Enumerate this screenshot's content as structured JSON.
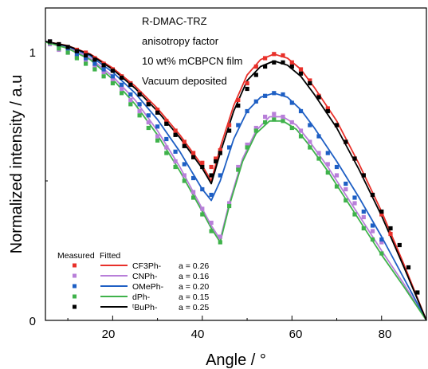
{
  "chart_data": {
    "type": "scatter",
    "xlabel": "Angle / °",
    "ylabel": "Normalized intensity / a.u",
    "xlim": [
      5,
      90
    ],
    "ylim": [
      0,
      1.12
    ],
    "x_ticks": [
      "20",
      "40",
      "60",
      "80"
    ],
    "y_ticks": [
      "0",
      "1"
    ],
    "annotations": [
      "R-DMAC-TRZ",
      "anisotropy factor",
      "10 wt% mCBPCN film",
      "Vacuum deposited"
    ],
    "legend_headers": {
      "measured": "Measured",
      "fitted": "Fitted"
    },
    "legend_position": "bottom-left",
    "series": [
      {
        "name": "CF3Ph-",
        "a_label": "a = 0.26",
        "color": "#e8302a",
        "curve": [
          [
            5,
            1.0
          ],
          [
            10,
            0.985
          ],
          [
            15,
            0.955
          ],
          [
            20,
            0.905
          ],
          [
            25,
            0.84
          ],
          [
            30,
            0.76
          ],
          [
            35,
            0.665
          ],
          [
            40,
            0.555
          ],
          [
            42,
            0.5
          ],
          [
            44,
            0.62
          ],
          [
            47,
            0.77
          ],
          [
            50,
            0.88
          ],
          [
            53,
            0.935
          ],
          [
            56,
            0.955
          ],
          [
            59,
            0.94
          ],
          [
            62,
            0.9
          ],
          [
            65,
            0.835
          ],
          [
            70,
            0.715
          ],
          [
            75,
            0.56
          ],
          [
            80,
            0.39
          ],
          [
            85,
            0.2
          ],
          [
            90,
            0.0
          ]
        ],
        "points": [
          [
            6,
            1.0
          ],
          [
            8,
            0.99
          ],
          [
            10,
            0.98
          ],
          [
            12,
            0.97
          ],
          [
            14,
            0.96
          ],
          [
            16,
            0.94
          ],
          [
            18,
            0.92
          ],
          [
            20,
            0.9
          ],
          [
            22,
            0.875
          ],
          [
            24,
            0.85
          ],
          [
            26,
            0.815
          ],
          [
            28,
            0.78
          ],
          [
            30,
            0.755
          ],
          [
            32,
            0.715
          ],
          [
            34,
            0.68
          ],
          [
            36,
            0.64
          ],
          [
            38,
            0.6
          ],
          [
            40,
            0.565
          ],
          [
            42,
            0.55
          ],
          [
            43,
            0.58
          ],
          [
            44,
            0.61
          ],
          [
            46,
            0.7
          ],
          [
            48,
            0.79
          ],
          [
            50,
            0.85
          ],
          [
            52,
            0.91
          ],
          [
            54,
            0.94
          ],
          [
            56,
            0.955
          ],
          [
            58,
            0.95
          ],
          [
            60,
            0.925
          ],
          [
            62,
            0.9
          ],
          [
            64,
            0.86
          ],
          [
            66,
            0.805
          ],
          [
            68,
            0.76
          ],
          [
            70,
            0.7
          ],
          [
            72,
            0.64
          ],
          [
            74,
            0.58
          ],
          [
            76,
            0.52
          ],
          [
            78,
            0.45
          ],
          [
            80,
            0.38
          ],
          [
            82,
            0.31
          ]
        ]
      },
      {
        "name": "CNPh-",
        "a_label": "a = 0.16",
        "color": "#b87fd9",
        "curve": [
          [
            5,
            1.0
          ],
          [
            10,
            0.98
          ],
          [
            15,
            0.94
          ],
          [
            20,
            0.875
          ],
          [
            25,
            0.79
          ],
          [
            30,
            0.68
          ],
          [
            35,
            0.55
          ],
          [
            40,
            0.4
          ],
          [
            42,
            0.34
          ],
          [
            44,
            0.29
          ],
          [
            46,
            0.42
          ],
          [
            49,
            0.58
          ],
          [
            52,
            0.68
          ],
          [
            55,
            0.73
          ],
          [
            58,
            0.73
          ],
          [
            61,
            0.7
          ],
          [
            64,
            0.64
          ],
          [
            68,
            0.55
          ],
          [
            72,
            0.45
          ],
          [
            76,
            0.35
          ],
          [
            80,
            0.25
          ],
          [
            85,
            0.13
          ],
          [
            90,
            0.0
          ]
        ],
        "points": [
          [
            6,
            0.99
          ],
          [
            8,
            0.97
          ],
          [
            10,
            0.96
          ],
          [
            12,
            0.945
          ],
          [
            14,
            0.93
          ],
          [
            16,
            0.91
          ],
          [
            18,
            0.89
          ],
          [
            20,
            0.865
          ],
          [
            22,
            0.83
          ],
          [
            24,
            0.79
          ],
          [
            26,
            0.75
          ],
          [
            28,
            0.71
          ],
          [
            30,
            0.66
          ],
          [
            32,
            0.62
          ],
          [
            34,
            0.57
          ],
          [
            36,
            0.52
          ],
          [
            38,
            0.46
          ],
          [
            40,
            0.4
          ],
          [
            42,
            0.35
          ],
          [
            44,
            0.3
          ],
          [
            46,
            0.42
          ],
          [
            48,
            0.55
          ],
          [
            50,
            0.63
          ],
          [
            52,
            0.69
          ],
          [
            54,
            0.73
          ],
          [
            56,
            0.74
          ],
          [
            58,
            0.73
          ],
          [
            60,
            0.71
          ],
          [
            62,
            0.68
          ],
          [
            64,
            0.64
          ],
          [
            66,
            0.6
          ],
          [
            68,
            0.56
          ],
          [
            70,
            0.52
          ],
          [
            72,
            0.47
          ],
          [
            74,
            0.42
          ],
          [
            76,
            0.37
          ],
          [
            78,
            0.32
          ],
          [
            80,
            0.28
          ]
        ]
      },
      {
        "name": "OMePh-",
        "a_label": "a = 0.20",
        "color": "#1e5fc4",
        "curve": [
          [
            5,
            1.0
          ],
          [
            10,
            0.982
          ],
          [
            15,
            0.948
          ],
          [
            20,
            0.89
          ],
          [
            25,
            0.815
          ],
          [
            30,
            0.72
          ],
          [
            35,
            0.605
          ],
          [
            40,
            0.47
          ],
          [
            42,
            0.43
          ],
          [
            44,
            0.5
          ],
          [
            47,
            0.65
          ],
          [
            50,
            0.75
          ],
          [
            53,
            0.8
          ],
          [
            56,
            0.815
          ],
          [
            59,
            0.8
          ],
          [
            62,
            0.755
          ],
          [
            65,
            0.69
          ],
          [
            70,
            0.57
          ],
          [
            75,
            0.44
          ],
          [
            80,
            0.3
          ],
          [
            85,
            0.15
          ],
          [
            90,
            0.0
          ]
        ],
        "points": [
          [
            6,
            1.0
          ],
          [
            8,
            0.985
          ],
          [
            10,
            0.975
          ],
          [
            12,
            0.955
          ],
          [
            14,
            0.94
          ],
          [
            16,
            0.92
          ],
          [
            18,
            0.9
          ],
          [
            20,
            0.875
          ],
          [
            22,
            0.845
          ],
          [
            24,
            0.81
          ],
          [
            26,
            0.775
          ],
          [
            28,
            0.735
          ],
          [
            30,
            0.695
          ],
          [
            32,
            0.65
          ],
          [
            34,
            0.605
          ],
          [
            36,
            0.56
          ],
          [
            38,
            0.51
          ],
          [
            40,
            0.47
          ],
          [
            42,
            0.45
          ],
          [
            44,
            0.52
          ],
          [
            46,
            0.62
          ],
          [
            48,
            0.7
          ],
          [
            50,
            0.75
          ],
          [
            52,
            0.785
          ],
          [
            54,
            0.805
          ],
          [
            56,
            0.815
          ],
          [
            58,
            0.81
          ],
          [
            60,
            0.78
          ],
          [
            62,
            0.75
          ],
          [
            64,
            0.7
          ],
          [
            66,
            0.66
          ],
          [
            68,
            0.6
          ],
          [
            70,
            0.55
          ],
          [
            72,
            0.49
          ],
          [
            74,
            0.44
          ],
          [
            76,
            0.39
          ],
          [
            78,
            0.34
          ],
          [
            80,
            0.29
          ]
        ]
      },
      {
        "name": "dPh-",
        "a_label": "a = 0.15",
        "color": "#3fb24b",
        "curve": [
          [
            5,
            0.998
          ],
          [
            10,
            0.975
          ],
          [
            15,
            0.935
          ],
          [
            20,
            0.865
          ],
          [
            25,
            0.775
          ],
          [
            30,
            0.665
          ],
          [
            35,
            0.535
          ],
          [
            40,
            0.39
          ],
          [
            42,
            0.33
          ],
          [
            44,
            0.28
          ],
          [
            46,
            0.41
          ],
          [
            49,
            0.57
          ],
          [
            52,
            0.67
          ],
          [
            55,
            0.715
          ],
          [
            58,
            0.715
          ],
          [
            61,
            0.685
          ],
          [
            64,
            0.625
          ],
          [
            68,
            0.535
          ],
          [
            72,
            0.435
          ],
          [
            76,
            0.335
          ],
          [
            80,
            0.235
          ],
          [
            85,
            0.12
          ],
          [
            90,
            0.0
          ]
        ],
        "points": [
          [
            6,
            0.995
          ],
          [
            8,
            0.975
          ],
          [
            10,
            0.96
          ],
          [
            12,
            0.94
          ],
          [
            14,
            0.92
          ],
          [
            16,
            0.9
          ],
          [
            18,
            0.875
          ],
          [
            20,
            0.85
          ],
          [
            22,
            0.815
          ],
          [
            24,
            0.775
          ],
          [
            26,
            0.735
          ],
          [
            28,
            0.69
          ],
          [
            30,
            0.645
          ],
          [
            32,
            0.6
          ],
          [
            34,
            0.55
          ],
          [
            36,
            0.5
          ],
          [
            38,
            0.44
          ],
          [
            40,
            0.38
          ],
          [
            42,
            0.32
          ],
          [
            44,
            0.28
          ],
          [
            46,
            0.41
          ],
          [
            48,
            0.54
          ],
          [
            50,
            0.62
          ],
          [
            52,
            0.68
          ],
          [
            54,
            0.71
          ],
          [
            56,
            0.72
          ],
          [
            58,
            0.715
          ],
          [
            60,
            0.69
          ],
          [
            62,
            0.66
          ],
          [
            64,
            0.62
          ],
          [
            66,
            0.58
          ],
          [
            68,
            0.53
          ],
          [
            70,
            0.48
          ],
          [
            72,
            0.43
          ],
          [
            74,
            0.38
          ],
          [
            76,
            0.33
          ],
          [
            78,
            0.29
          ],
          [
            80,
            0.24
          ]
        ]
      },
      {
        "name": "ᵗBuPh-",
        "a_label": "a = 0.25",
        "color": "#000000",
        "curve": [
          [
            5,
            1.0
          ],
          [
            10,
            0.984
          ],
          [
            15,
            0.953
          ],
          [
            20,
            0.9
          ],
          [
            25,
            0.832
          ],
          [
            30,
            0.75
          ],
          [
            35,
            0.655
          ],
          [
            40,
            0.545
          ],
          [
            42,
            0.49
          ],
          [
            44,
            0.6
          ],
          [
            47,
            0.75
          ],
          [
            50,
            0.86
          ],
          [
            53,
            0.91
          ],
          [
            56,
            0.93
          ],
          [
            59,
            0.915
          ],
          [
            62,
            0.875
          ],
          [
            65,
            0.81
          ],
          [
            70,
            0.69
          ],
          [
            75,
            0.54
          ],
          [
            80,
            0.375
          ],
          [
            85,
            0.19
          ],
          [
            90,
            0.0
          ]
        ],
        "points": [
          [
            6,
            1.0
          ],
          [
            8,
            0.99
          ],
          [
            10,
            0.98
          ],
          [
            12,
            0.965
          ],
          [
            14,
            0.95
          ],
          [
            16,
            0.935
          ],
          [
            18,
            0.915
          ],
          [
            20,
            0.895
          ],
          [
            22,
            0.87
          ],
          [
            24,
            0.845
          ],
          [
            26,
            0.81
          ],
          [
            28,
            0.775
          ],
          [
            30,
            0.745
          ],
          [
            32,
            0.705
          ],
          [
            34,
            0.665
          ],
          [
            36,
            0.625
          ],
          [
            38,
            0.585
          ],
          [
            40,
            0.55
          ],
          [
            42,
            0.52
          ],
          [
            43,
            0.57
          ],
          [
            44,
            0.6
          ],
          [
            46,
            0.68
          ],
          [
            48,
            0.77
          ],
          [
            50,
            0.83
          ],
          [
            52,
            0.88
          ],
          [
            54,
            0.91
          ],
          [
            56,
            0.925
          ],
          [
            58,
            0.925
          ],
          [
            60,
            0.91
          ],
          [
            62,
            0.885
          ],
          [
            64,
            0.85
          ],
          [
            66,
            0.8
          ],
          [
            68,
            0.75
          ],
          [
            70,
            0.7
          ],
          [
            72,
            0.64
          ],
          [
            74,
            0.58
          ],
          [
            76,
            0.52
          ],
          [
            78,
            0.45
          ],
          [
            80,
            0.39
          ],
          [
            82,
            0.33
          ],
          [
            84,
            0.27
          ],
          [
            86,
            0.19
          ],
          [
            88,
            0.1
          ]
        ]
      }
    ]
  }
}
